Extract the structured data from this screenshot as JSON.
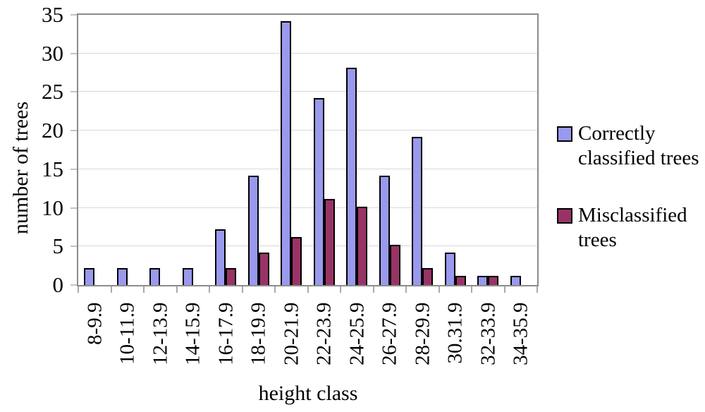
{
  "chart_data": {
    "type": "bar",
    "title": "",
    "xlabel": "height class",
    "ylabel": "number of trees",
    "categories": [
      "8-9.9",
      "10-11.9",
      "12-13.9",
      "14-15.9",
      "16-17.9",
      "18-19.9",
      "20-21.9",
      "22-23.9",
      "24-25.9",
      "26-27.9",
      "28-29.9",
      "30.31.9",
      "32-33.9",
      "34-35.9"
    ],
    "series": [
      {
        "name": "Correctly classified trees",
        "color": "#9999ee",
        "values": [
          2,
          2,
          2,
          2,
          7,
          14,
          34,
          24,
          28,
          14,
          19,
          4,
          1,
          1
        ]
      },
      {
        "name": "Misclassified trees",
        "color": "#993366",
        "values": [
          0,
          0,
          0,
          0,
          2,
          4,
          6,
          11,
          10,
          5,
          2,
          1,
          1,
          0
        ]
      }
    ],
    "ylim": [
      0,
      35
    ],
    "yticks": [
      0,
      5,
      10,
      15,
      20,
      25,
      30,
      35
    ],
    "grid": true,
    "legend_position": "right",
    "colors": {
      "axis_border": "#8c8c8c",
      "gridline": "#d8d8d8",
      "bar_border": "#000000",
      "background": "#ffffff",
      "text": "#000000"
    }
  }
}
